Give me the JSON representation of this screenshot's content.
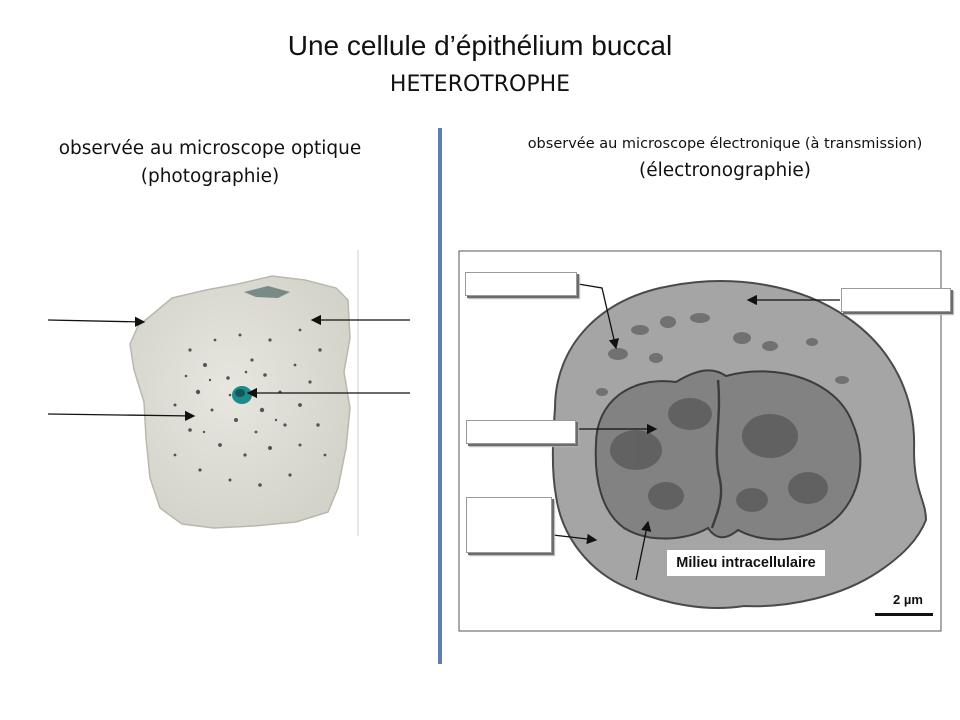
{
  "title": "Une cellule d’épithélium buccal",
  "subtitle": "HETEROTROPHE",
  "left_panel": {
    "caption_line1": "observée au microscope optique",
    "caption_line2": "(photographie)"
  },
  "right_panel": {
    "caption_line1": "observée au microscope électronique (à transmission)",
    "caption_line2": "(électronographie)",
    "label_intracellular": "Milieu intracellulaire",
    "scale_label": "2 µm"
  },
  "colors": {
    "divider": "#5b7fb0",
    "nucleus": "#1f8a8a"
  }
}
